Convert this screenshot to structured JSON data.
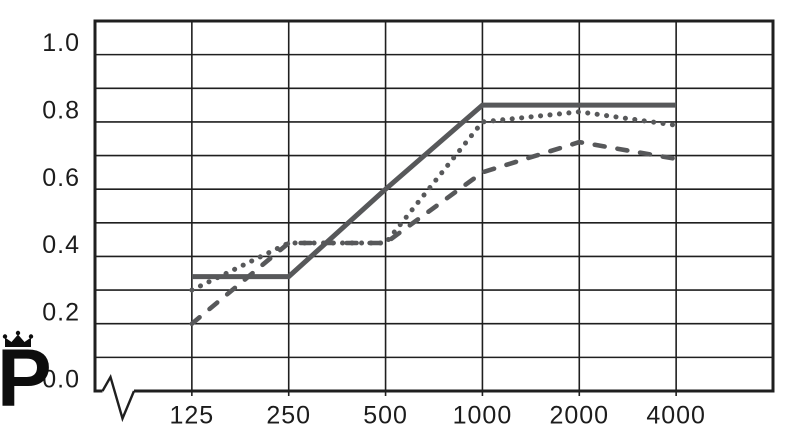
{
  "figure": {
    "background": "#ffffff",
    "grid_color": "#1f1f1f",
    "series_color": "#57585a",
    "text_color": "#1c1c1c",
    "logo": {
      "letter": "P",
      "description": "crown-over-P publisher logo",
      "color": "#0d0d0d"
    }
  },
  "chart_data": {
    "type": "line",
    "title": "",
    "xlabel": "",
    "ylabel": "",
    "x_categories": [
      "125",
      "250",
      "500",
      "1000",
      "2000",
      "4000"
    ],
    "x_values": [
      125,
      250,
      500,
      1000,
      2000,
      4000
    ],
    "series": [
      {
        "name": "dashed-series",
        "style": "dashed",
        "values": [
          0.2,
          0.44,
          0.44,
          0.65,
          0.74,
          0.69
        ]
      },
      {
        "name": "solid-series",
        "style": "solid",
        "values": [
          0.34,
          0.34,
          0.6,
          0.85,
          0.85,
          0.85
        ]
      },
      {
        "name": "dotted-series",
        "style": "dotted",
        "values": [
          0.3,
          0.44,
          0.44,
          0.8,
          0.83,
          0.79
        ]
      }
    ],
    "ylim": [
      0,
      1.1
    ],
    "y_gridline_step": 0.1,
    "y_ticks": [
      {
        "value": 1.0,
        "label": "1.0"
      },
      {
        "value": 0.8,
        "label": "0.8"
      },
      {
        "value": 0.6,
        "label": "0.6"
      },
      {
        "value": 0.4,
        "label": "0.4"
      },
      {
        "value": 0.2,
        "label": "0.2"
      },
      {
        "value": 0.0,
        "label": "0.0"
      }
    ],
    "grid": true,
    "legend": "none",
    "x_axis_break": true
  }
}
